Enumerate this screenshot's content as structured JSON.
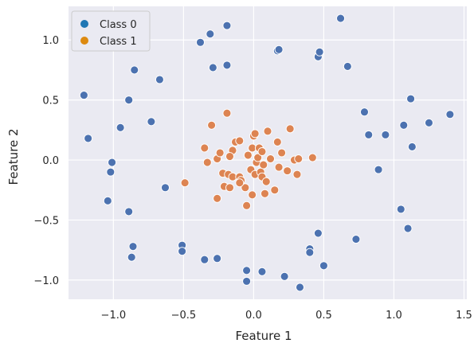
{
  "chart_data": {
    "type": "scatter",
    "title": "",
    "xlabel": "Feature 1",
    "ylabel": "Feature 2",
    "xlim": [
      -1.32,
      1.52
    ],
    "ylim": [
      -1.16,
      1.28
    ],
    "x_ticks": [
      -1.0,
      -0.5,
      0.0,
      0.5,
      1.0,
      1.5
    ],
    "x_tick_labels": [
      "−1.0",
      "−0.5",
      "0.0",
      "0.5",
      "1.0",
      "1.5"
    ],
    "y_ticks": [
      -1.0,
      -0.5,
      0.0,
      0.5,
      1.0
    ],
    "y_tick_labels": [
      "−1.0",
      "−0.5",
      "0.0",
      "0.5",
      "1.0"
    ],
    "grid": true,
    "legend_position": "top-left",
    "colors": {
      "background": "#eaeaf2",
      "grid": "#ffffff",
      "class0": "#4c72b0",
      "class1": "#dd8452",
      "legend_class0": "#1f77b4",
      "legend_class1": "#dd8a10"
    },
    "series": [
      {
        "name": "Class 0",
        "points": [
          [
            -1.21,
            0.54
          ],
          [
            -1.18,
            0.18
          ],
          [
            -1.01,
            -0.02
          ],
          [
            -1.02,
            -0.1
          ],
          [
            -1.04,
            -0.34
          ],
          [
            -0.95,
            0.27
          ],
          [
            -0.89,
            0.5
          ],
          [
            -0.85,
            0.75
          ],
          [
            -0.89,
            -0.43
          ],
          [
            -0.86,
            -0.72
          ],
          [
            -0.87,
            -0.81
          ],
          [
            -0.73,
            0.32
          ],
          [
            -0.67,
            0.67
          ],
          [
            -0.63,
            -0.23
          ],
          [
            -0.51,
            -0.71
          ],
          [
            -0.51,
            -0.76
          ],
          [
            -0.38,
            0.98
          ],
          [
            -0.31,
            1.05
          ],
          [
            -0.29,
            0.77
          ],
          [
            -0.19,
            1.12
          ],
          [
            -0.19,
            0.79
          ],
          [
            -0.35,
            -0.83
          ],
          [
            -0.26,
            -0.82
          ],
          [
            -0.05,
            -0.92
          ],
          [
            -0.05,
            -1.01
          ],
          [
            0.06,
            -0.93
          ],
          [
            0.17,
            0.91
          ],
          [
            0.18,
            0.92
          ],
          [
            0.22,
            -0.97
          ],
          [
            0.33,
            -1.06
          ],
          [
            0.4,
            -0.74
          ],
          [
            0.4,
            -0.77
          ],
          [
            0.46,
            -0.61
          ],
          [
            0.46,
            0.86
          ],
          [
            0.47,
            0.9
          ],
          [
            0.5,
            -0.88
          ],
          [
            0.62,
            1.18
          ],
          [
            0.67,
            0.78
          ],
          [
            0.73,
            -0.66
          ],
          [
            0.79,
            0.4
          ],
          [
            0.82,
            0.21
          ],
          [
            0.89,
            -0.08
          ],
          [
            0.94,
            0.21
          ],
          [
            1.05,
            -0.41
          ],
          [
            1.07,
            0.29
          ],
          [
            1.1,
            -0.57
          ],
          [
            1.12,
            0.51
          ],
          [
            1.13,
            0.11
          ],
          [
            1.25,
            0.31
          ],
          [
            1.4,
            0.38
          ]
        ]
      },
      {
        "name": "Class 1",
        "points": [
          [
            -0.35,
            0.1
          ],
          [
            -0.33,
            -0.02
          ],
          [
            -0.3,
            0.29
          ],
          [
            -0.26,
            0.01
          ],
          [
            -0.24,
            0.06
          ],
          [
            -0.22,
            -0.11
          ],
          [
            -0.21,
            -0.22
          ],
          [
            -0.19,
            0.39
          ],
          [
            -0.18,
            -0.12
          ],
          [
            -0.17,
            -0.23
          ],
          [
            -0.15,
            -0.14
          ],
          [
            -0.15,
            0.08
          ],
          [
            -0.13,
            0.15
          ],
          [
            -0.1,
            0.16
          ],
          [
            -0.1,
            -0.14
          ],
          [
            -0.09,
            -0.17
          ],
          [
            -0.06,
            -0.23
          ],
          [
            -0.05,
            -0.38
          ],
          [
            -0.04,
            0.04
          ],
          [
            -0.02,
            -0.08
          ],
          [
            -0.01,
            0.1
          ],
          [
            -0.01,
            -0.29
          ],
          [
            0.0,
            0.2
          ],
          [
            0.01,
            0.22
          ],
          [
            0.01,
            -0.12
          ],
          [
            0.02,
            -0.02
          ],
          [
            0.03,
            0.02
          ],
          [
            0.04,
            0.1
          ],
          [
            0.05,
            -0.1
          ],
          [
            0.06,
            -0.14
          ],
          [
            0.06,
            0.07
          ],
          [
            0.07,
            -0.04
          ],
          [
            0.08,
            -0.28
          ],
          [
            0.09,
            -0.18
          ],
          [
            0.1,
            0.24
          ],
          [
            0.12,
            0.01
          ],
          [
            0.15,
            -0.25
          ],
          [
            0.17,
            0.15
          ],
          [
            0.18,
            -0.06
          ],
          [
            0.2,
            0.06
          ],
          [
            0.24,
            -0.09
          ],
          [
            0.26,
            0.26
          ],
          [
            0.29,
            0.0
          ],
          [
            0.31,
            -0.12
          ],
          [
            0.32,
            0.01
          ],
          [
            0.42,
            0.02
          ],
          [
            -0.49,
            -0.19
          ],
          [
            -0.26,
            -0.32
          ],
          [
            -0.17,
            0.03
          ],
          [
            -0.1,
            -0.19
          ]
        ]
      }
    ]
  }
}
